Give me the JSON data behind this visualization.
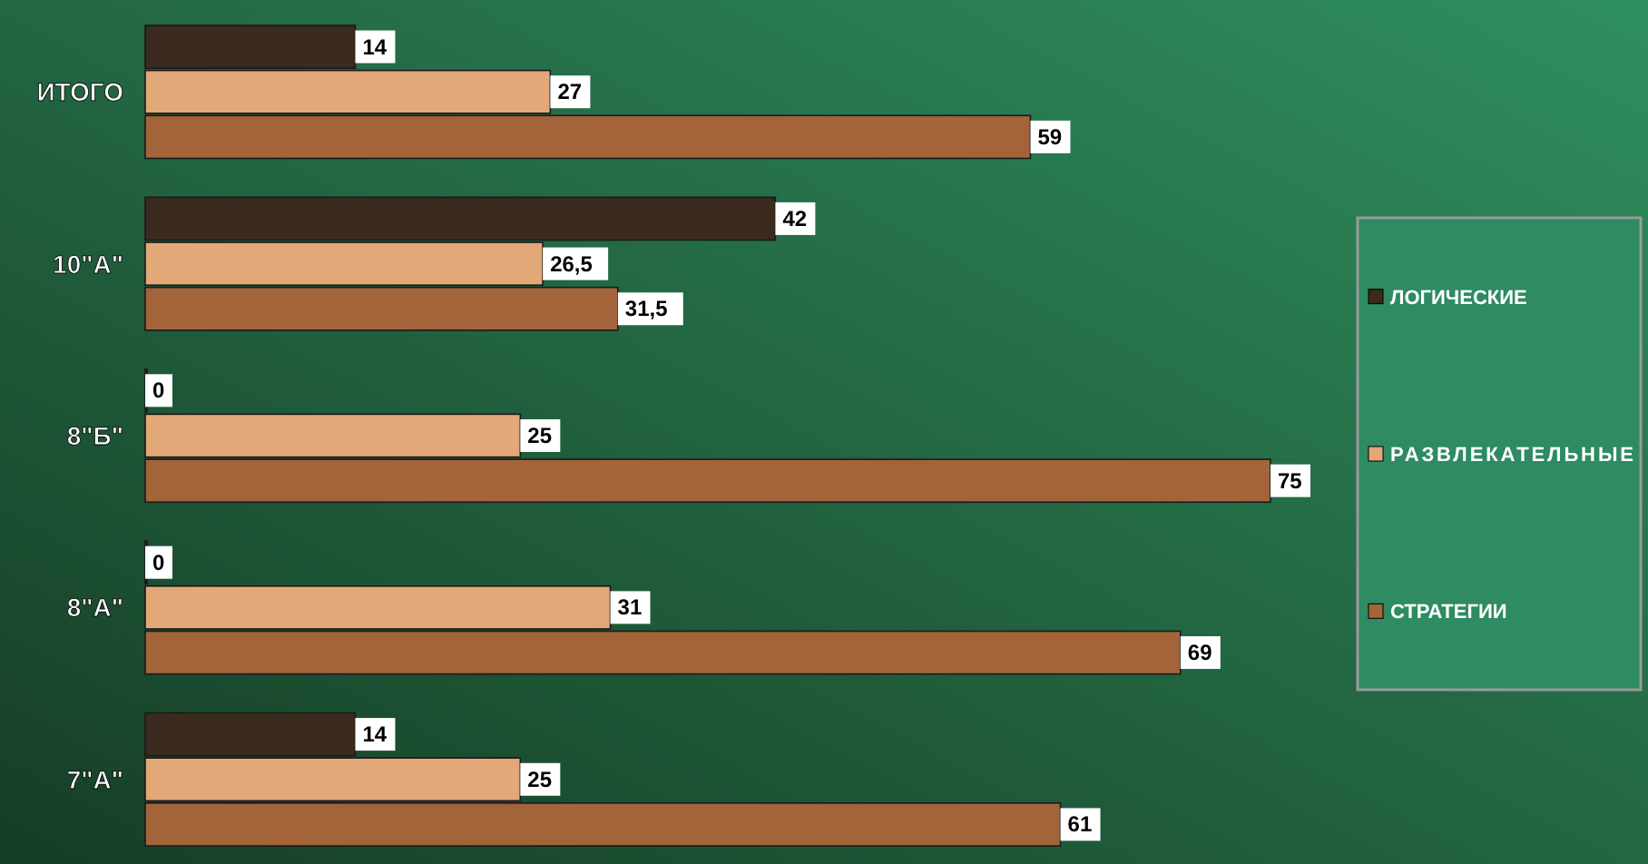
{
  "chart_data": {
    "type": "bar",
    "orientation": "horizontal",
    "categories": [
      "ИТОГО",
      "10\"А\"",
      "8\"Б\"",
      "8\"А\"",
      "7\"А\""
    ],
    "series": [
      {
        "name": "ЛОГИЧЕСКИЕ",
        "color": "#3b2a1e",
        "values": [
          14,
          42,
          0,
          0,
          14
        ],
        "value_labels": [
          "14",
          "42",
          "0",
          "0",
          "14"
        ]
      },
      {
        "name": "РАЗВЛЕКАТЕЛЬНЫЕ",
        "color": "#e2a878",
        "values": [
          27,
          26.5,
          25,
          31,
          25
        ],
        "value_labels": [
          "27",
          "26,5",
          "25",
          "31",
          "25"
        ]
      },
      {
        "name": "СТРАТЕГИИ",
        "color": "#a3643a",
        "values": [
          59,
          31.5,
          75,
          69,
          61
        ],
        "value_labels": [
          "59",
          "31,5",
          "75",
          "69",
          "61"
        ]
      }
    ],
    "legend": "right",
    "grid": false
  }
}
